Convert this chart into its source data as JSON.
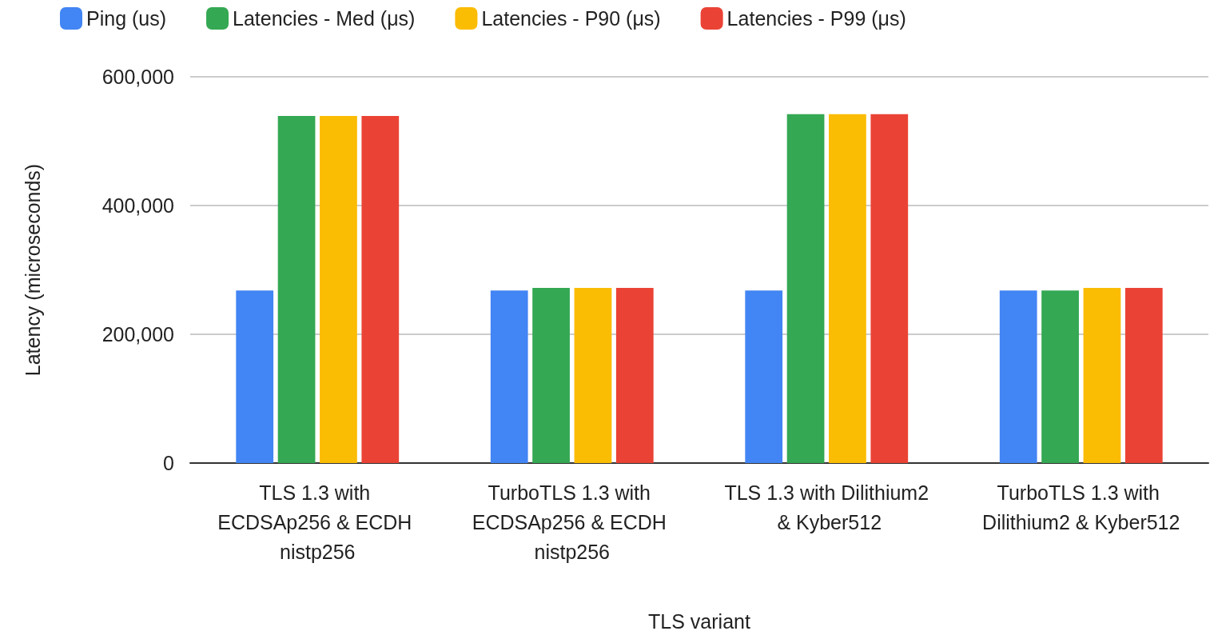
{
  "chart_data": {
    "type": "bar",
    "xlabel": "TLS variant",
    "ylabel": "Latency (microseconds)",
    "categories": [
      "TLS 1.3 with ECDSAp256 & ECDH nistp256",
      "TurboTLS 1.3 with ECDSAp256 & ECDH nistp256",
      "TLS 1.3 with Dilithium2 & Kyber512",
      "TurboTLS 1.3 with Dilithium2 & Kyber512"
    ],
    "series": [
      {
        "name": "Ping (us)",
        "color": "#4285f4",
        "values": [
          268000,
          268000,
          268000,
          268000
        ]
      },
      {
        "name": "Latencies - Med (μs)",
        "color": "#34a853",
        "values": [
          539000,
          272000,
          542000,
          268000
        ]
      },
      {
        "name": "Latencies - P90 (μs)",
        "color": "#fbbc04",
        "values": [
          539000,
          272000,
          542000,
          272000
        ]
      },
      {
        "name": "Latencies - P99 (μs)",
        "color": "#ea4335",
        "values": [
          539000,
          272000,
          542000,
          272000
        ]
      }
    ],
    "ylim": [
      0,
      600000
    ],
    "yticks": [
      0,
      {
        "value": 200000,
        "label": "200,000"
      },
      {
        "value": 400000,
        "label": "400,000"
      },
      {
        "value": 600000,
        "label": "600,000"
      }
    ],
    "grid": "y",
    "legend": "top"
  }
}
